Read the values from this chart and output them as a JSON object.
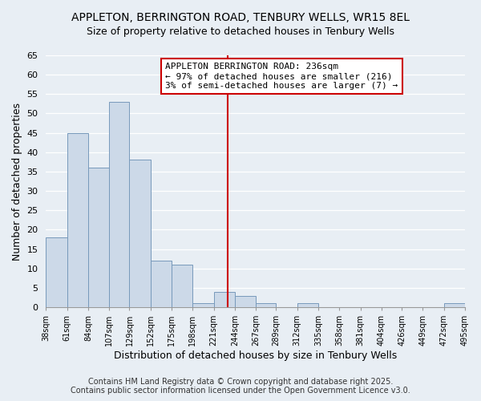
{
  "title": "APPLETON, BERRINGTON ROAD, TENBURY WELLS, WR15 8EL",
  "subtitle": "Size of property relative to detached houses in Tenbury Wells",
  "xlabel": "Distribution of detached houses by size in Tenbury Wells",
  "ylabel": "Number of detached properties",
  "bar_color": "#ccd9e8",
  "bar_edge_color": "#7799bb",
  "bins": [
    38,
    61,
    84,
    107,
    129,
    152,
    175,
    198,
    221,
    244,
    267,
    289,
    312,
    335,
    358,
    381,
    404,
    426,
    449,
    472,
    495
  ],
  "counts": [
    18,
    45,
    36,
    53,
    38,
    12,
    11,
    1,
    4,
    3,
    1,
    0,
    1,
    0,
    0,
    0,
    0,
    0,
    0,
    1
  ],
  "tick_labels": [
    "38sqm",
    "61sqm",
    "84sqm",
    "107sqm",
    "129sqm",
    "152sqm",
    "175sqm",
    "198sqm",
    "221sqm",
    "244sqm",
    "267sqm",
    "289sqm",
    "312sqm",
    "335sqm",
    "358sqm",
    "381sqm",
    "404sqm",
    "426sqm",
    "449sqm",
    "472sqm",
    "495sqm"
  ],
  "ylim": [
    0,
    65
  ],
  "yticks": [
    0,
    5,
    10,
    15,
    20,
    25,
    30,
    35,
    40,
    45,
    50,
    55,
    60,
    65
  ],
  "vline_x": 236,
  "vline_color": "#cc0000",
  "annotation_title": "APPLETON BERRINGTON ROAD: 236sqm",
  "annotation_line1": "← 97% of detached houses are smaller (216)",
  "annotation_line2": "3% of semi-detached houses are larger (7) →",
  "footer1": "Contains HM Land Registry data © Crown copyright and database right 2025.",
  "footer2": "Contains public sector information licensed under the Open Government Licence v3.0.",
  "background_color": "#e8eef4",
  "grid_color": "#ffffff",
  "title_fontsize": 10,
  "axis_label_fontsize": 9,
  "tick_fontsize": 7,
  "annotation_fontsize": 8,
  "footer_fontsize": 7
}
